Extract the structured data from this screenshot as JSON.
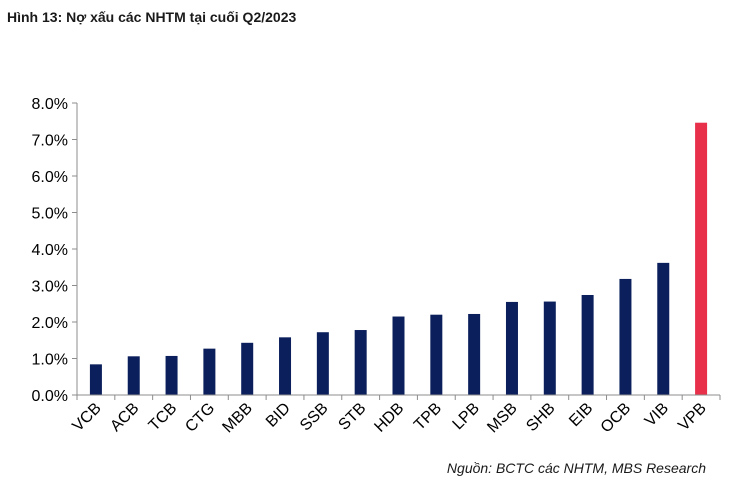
{
  "title": "Hình 13: Nợ xấu các NHTM tại cuối Q2/2023",
  "source": "Nguồn: BCTC các NHTM, MBS Research",
  "colors": {
    "bar": "#0b1f5c",
    "highlight": "#e8304a",
    "axis": "#8c8c8c"
  },
  "chart_data": {
    "type": "bar",
    "title": "Hình 13: Nợ xấu các NHTM tại cuối Q2/2023",
    "xlabel": "",
    "ylabel": "",
    "categories": [
      "VCB",
      "ACB",
      "TCB",
      "CTG",
      "MBB",
      "BID",
      "SSB",
      "STB",
      "HDB",
      "TPB",
      "LPB",
      "MSB",
      "SHB",
      "EIB",
      "OCB",
      "VIB",
      "VPB"
    ],
    "values": [
      0.84,
      1.06,
      1.07,
      1.27,
      1.43,
      1.58,
      1.72,
      1.78,
      2.15,
      2.2,
      2.22,
      2.55,
      2.56,
      2.74,
      3.18,
      3.62,
      7.46
    ],
    "highlight_category": "VPB",
    "ylim": [
      0,
      8
    ],
    "y_ticks": [
      "0.0%",
      "1.0%",
      "2.0%",
      "3.0%",
      "4.0%",
      "5.0%",
      "6.0%",
      "7.0%",
      "8.0%"
    ],
    "grid": false,
    "legend": "none"
  }
}
